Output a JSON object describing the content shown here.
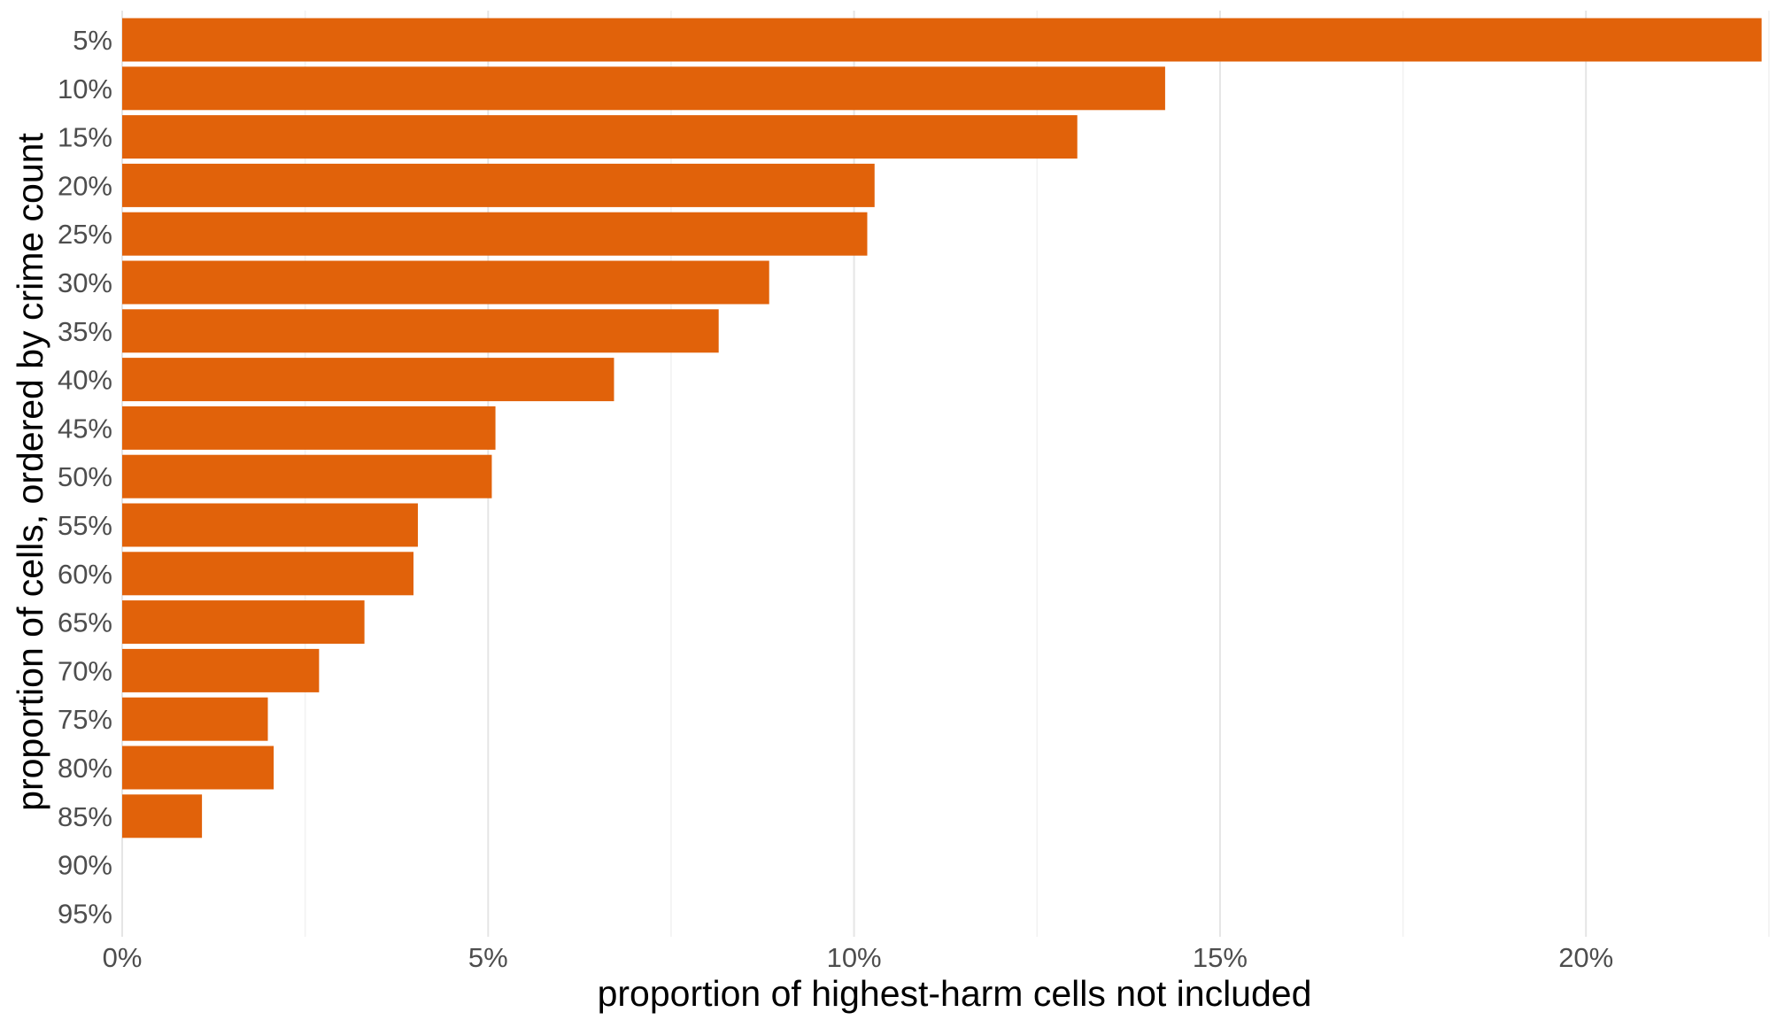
{
  "chart_data": {
    "type": "bar",
    "orientation": "horizontal",
    "xlabel": "proportion of highest-harm cells not included",
    "ylabel": "proportion of cells, ordered by crime count",
    "categories": [
      "5%",
      "10%",
      "15%",
      "20%",
      "25%",
      "30%",
      "35%",
      "40%",
      "45%",
      "50%",
      "55%",
      "60%",
      "65%",
      "70%",
      "75%",
      "80%",
      "85%",
      "90%",
      "95%"
    ],
    "values": [
      0.224,
      0.1425,
      0.1305,
      0.1028,
      0.1018,
      0.0884,
      0.0815,
      0.0672,
      0.051,
      0.0505,
      0.0404,
      0.0398,
      0.0331,
      0.0269,
      0.0199,
      0.0207,
      0.0109,
      0.0,
      0.0
    ],
    "x_ticks": [
      0,
      0.05,
      0.1,
      0.15,
      0.2
    ],
    "x_tick_labels": [
      "0%",
      "5%",
      "10%",
      "15%",
      "20%"
    ],
    "xlim": [
      0,
      0.2255
    ],
    "grid": "vertical",
    "legend": "none",
    "bar_color": "#E1620A"
  }
}
